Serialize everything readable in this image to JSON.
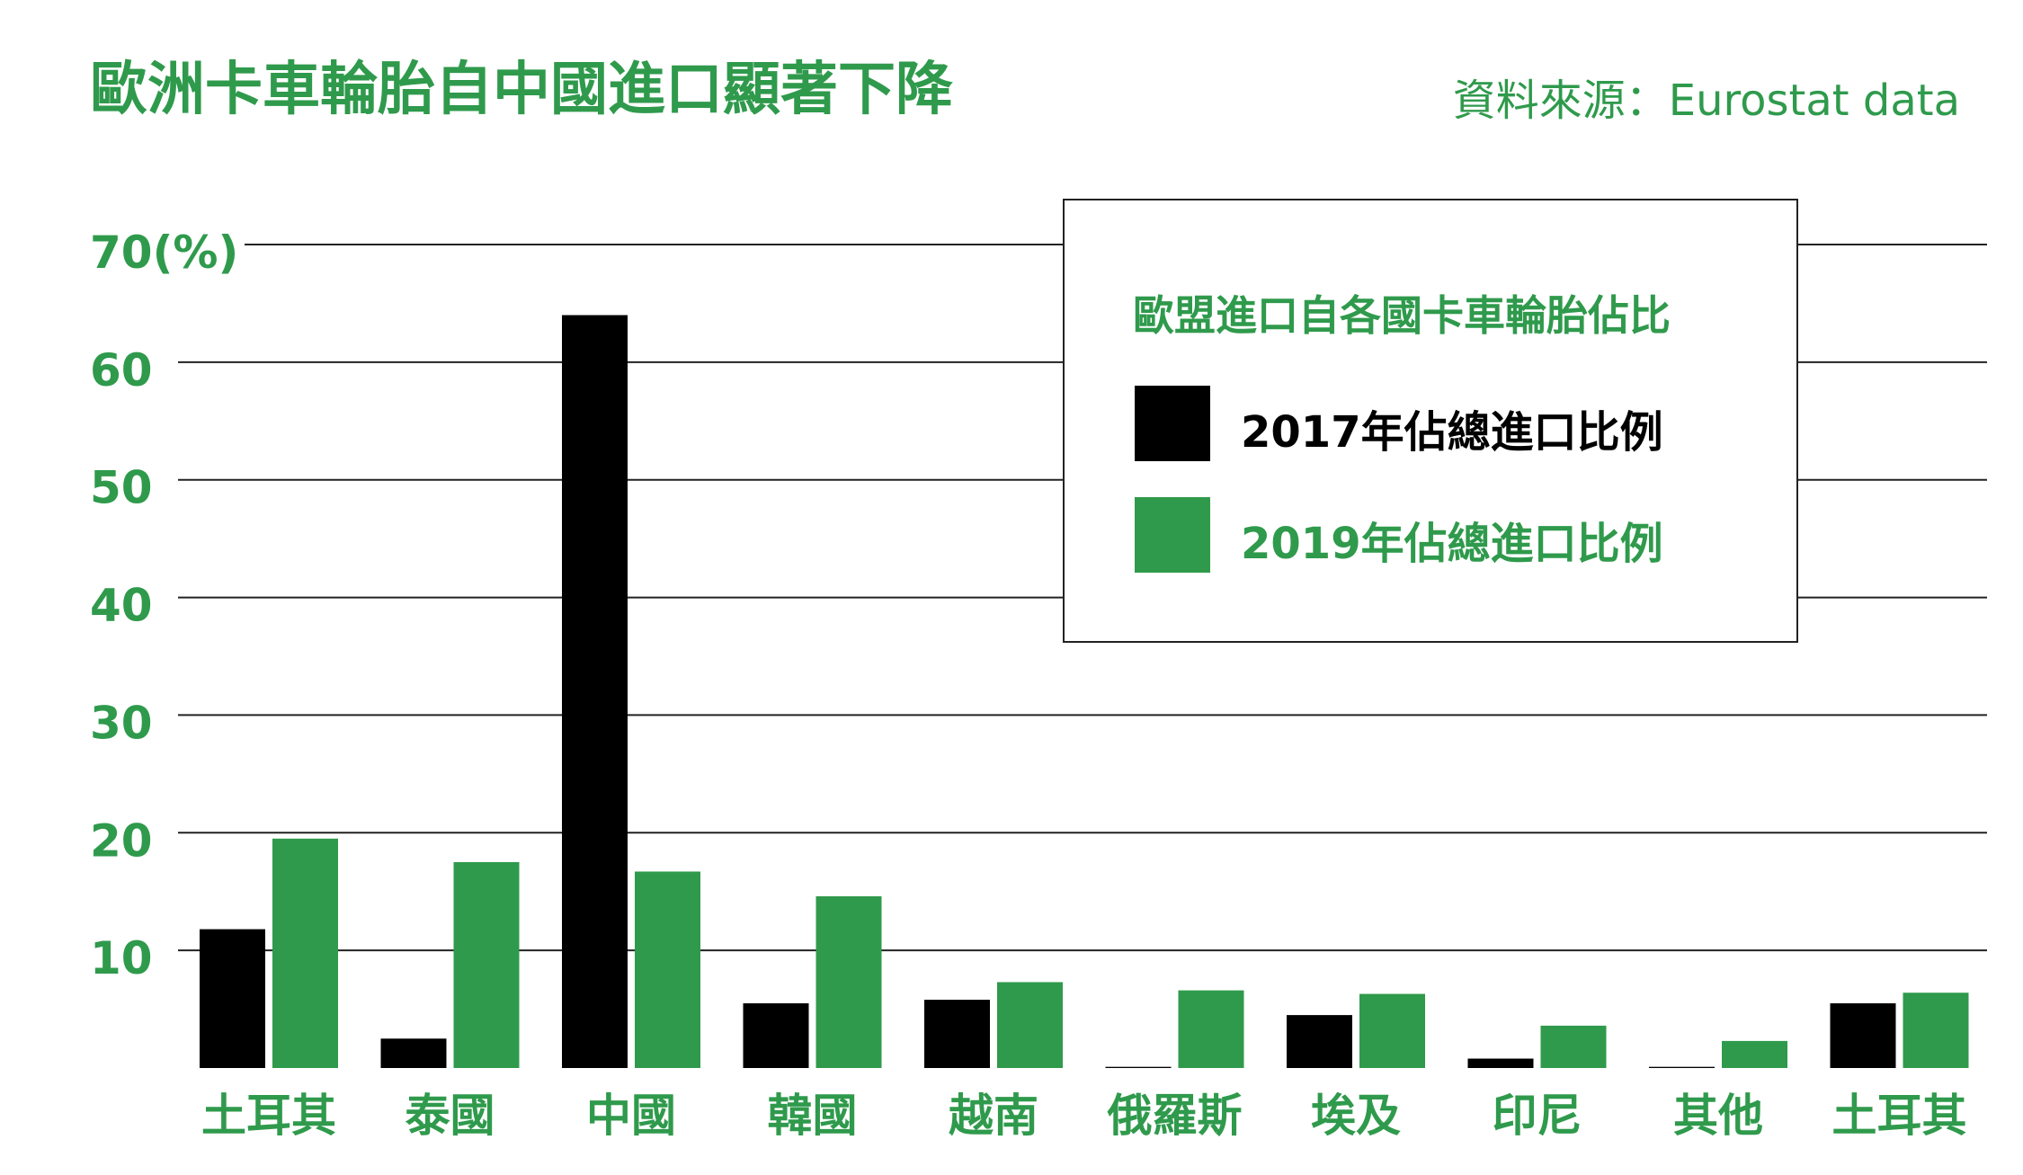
{
  "title": "歐洲卡車輪胎自中國進口顯著下降",
  "source": "資料來源：Eurostat data",
  "legend": {
    "title": "歐盟進口自各國卡車輪胎佔比"
  },
  "colors": {
    "s2017": "#000000",
    "s2019": "#2f9a4c",
    "text": "#2f9a4c"
  },
  "chart_data": {
    "type": "bar",
    "title": "歐洲卡車輪胎自中國進口顯著下降",
    "ylabel": "",
    "xlabel": "",
    "ylim": [
      0,
      70
    ],
    "yticks": [
      10,
      20,
      30,
      40,
      50,
      60,
      70
    ],
    "ytick_labels": [
      "10",
      "20",
      "30",
      "40",
      "50",
      "60",
      "70(%)"
    ],
    "grid": true,
    "legend_position": "top-right",
    "categories": [
      "土耳其",
      "泰國",
      "中國",
      "韓國",
      "越南",
      "俄羅斯",
      "埃及",
      "印尼",
      "其他",
      "土耳其"
    ],
    "series": [
      {
        "name": "2017年佔總進口比例",
        "color": "#000000",
        "values": [
          11.8,
          2.5,
          64.0,
          5.5,
          5.8,
          0.1,
          4.5,
          0.8,
          0.1,
          5.5
        ]
      },
      {
        "name": "2019年佔總進口比例",
        "color": "#2f9a4c",
        "values": [
          19.5,
          17.5,
          16.7,
          14.6,
          7.3,
          6.6,
          6.3,
          3.6,
          2.3,
          6.4
        ]
      }
    ]
  }
}
